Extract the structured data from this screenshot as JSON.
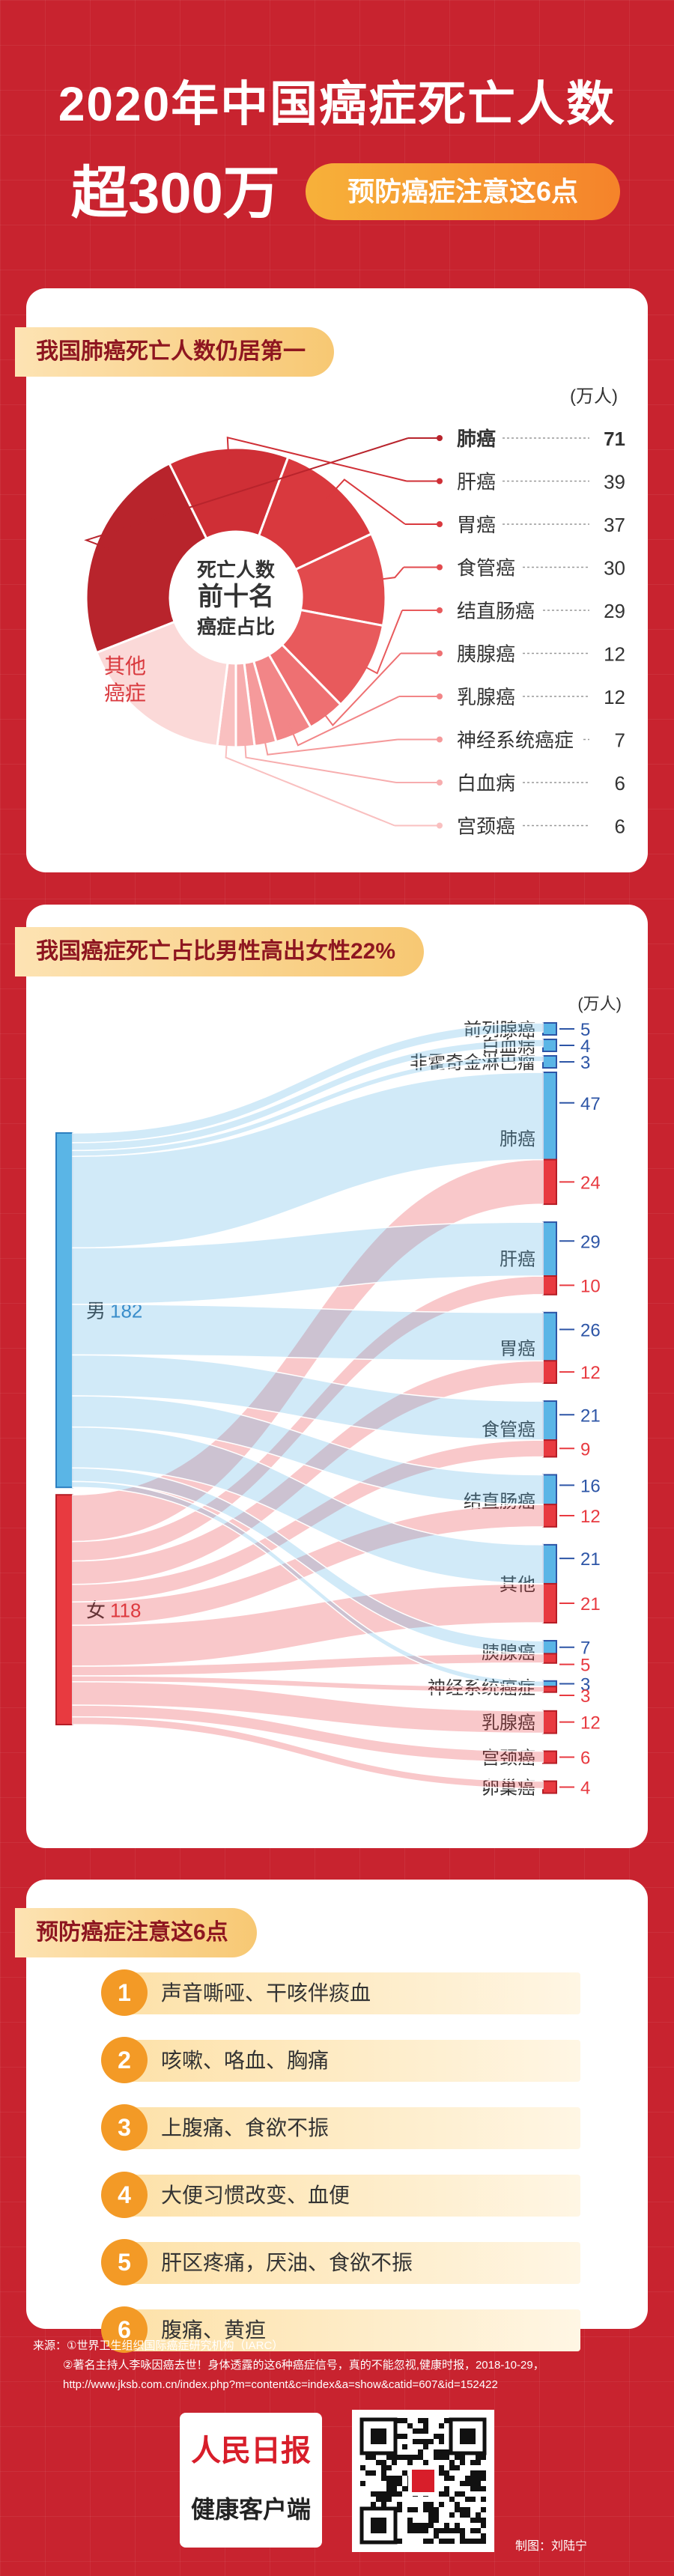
{
  "header": {
    "title_line1": "2020年中国癌症死亡人数",
    "title_line2": "超300万",
    "badge": "预防癌症注意这6点"
  },
  "section1": {
    "label": "我国肺癌死亡人数仍居第一",
    "unit": "(万人)",
    "center_lines": [
      "死亡人数",
      "前十名",
      "癌症占比"
    ],
    "other_label_lines": [
      "其他",
      "癌症"
    ],
    "chart_data": {
      "type": "pie",
      "title": "我国肺癌死亡人数仍居第一",
      "unit": "万人",
      "categories": [
        "肺癌",
        "肝癌",
        "胃癌",
        "食管癌",
        "结直肠癌",
        "胰腺癌",
        "乳腺癌",
        "神经系统癌症",
        "白血病",
        "宫颈癌",
        "其他癌症"
      ],
      "values": [
        71,
        39,
        37,
        30,
        29,
        12,
        12,
        7,
        6,
        6,
        51
      ]
    }
  },
  "section2": {
    "label": "我国癌症死亡占比男性高出女性22%",
    "unit": "(万人)",
    "male_label": "男",
    "male_value": 182,
    "female_label": "女",
    "female_value": 118,
    "chart_data": {
      "type": "sankey",
      "title": "我国癌症死亡占比男性高出女性22%",
      "unit": "万人",
      "sources": [
        {
          "name": "男",
          "value": 182
        },
        {
          "name": "女",
          "value": 118
        }
      ],
      "targets": [
        {
          "name": "前列腺癌",
          "male": 5,
          "female": null
        },
        {
          "name": "白血病",
          "male": 4,
          "female": null
        },
        {
          "name": "非霍奇金淋巴瘤",
          "male": 3,
          "female": null
        },
        {
          "name": "肺癌",
          "male": 47,
          "female": 24
        },
        {
          "name": "肝癌",
          "male": 29,
          "female": 10
        },
        {
          "name": "胃癌",
          "male": 26,
          "female": 12
        },
        {
          "name": "食管癌",
          "male": 21,
          "female": 9
        },
        {
          "name": "结直肠癌",
          "male": 16,
          "female": 12
        },
        {
          "name": "其他",
          "male": 21,
          "female": 21
        },
        {
          "name": "胰腺癌",
          "male": 7,
          "female": 5
        },
        {
          "name": "神经系统癌症",
          "male": 3,
          "female": 3
        },
        {
          "name": "乳腺癌",
          "male": null,
          "female": 12
        },
        {
          "name": "宫颈癌",
          "male": null,
          "female": 6
        },
        {
          "name": "卵巢癌",
          "male": null,
          "female": 4
        }
      ]
    }
  },
  "section3": {
    "label": "预防癌症注意这6点",
    "tips": [
      {
        "num": "1",
        "text": "声音嘶哑、干咳伴痰血"
      },
      {
        "num": "2",
        "text": "咳嗽、咯血、胸痛"
      },
      {
        "num": "3",
        "text": "上腹痛、食欲不振"
      },
      {
        "num": "4",
        "text": "大便习惯改变、血便"
      },
      {
        "num": "5",
        "text": "肝区疼痛，厌油、食欲不振"
      },
      {
        "num": "6",
        "text": "腹痛、黄疸"
      }
    ]
  },
  "footer": {
    "source_line1": "来源：①世界卫生组织国际癌症研究机构（IARC）",
    "source_line2": "②著名主持人李咏因癌去世！身体透露的这6种癌症信号，真的不能忽视,健康时报，2018-10-29，",
    "source_line3": "http://www.jksb.com.cn/index.php?m=content&c=index&a=show&catid=607&id=152422",
    "logo_top": "人民日报",
    "logo_bottom": "健康客户端",
    "credit": "制图：刘陆宁"
  },
  "colors": {
    "bg": "#c8232f",
    "male": "#5ab5e6",
    "female": "#e83a40",
    "accent": "#f39a26"
  }
}
